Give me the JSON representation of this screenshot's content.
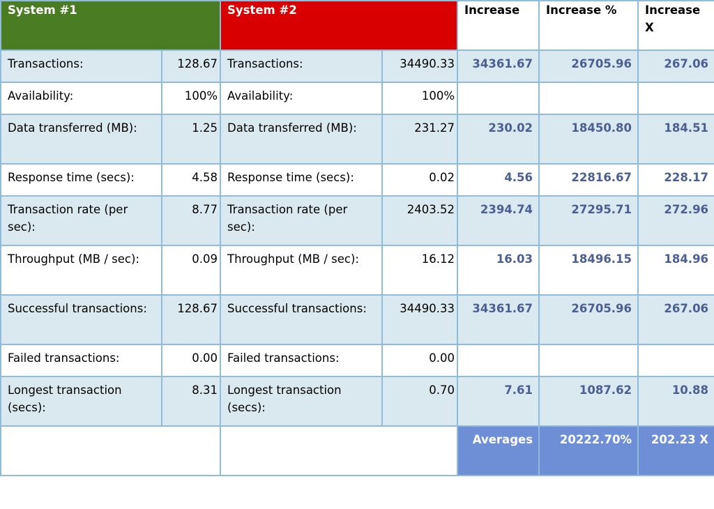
{
  "header": {
    "system1": "System #1",
    "system2": "System #2",
    "increase": "Increase",
    "increase_pct": "Increase %",
    "increase_x": "Increase X"
  },
  "rows": [
    {
      "label1": "Transactions:",
      "value1": "128.67",
      "label2": "Transactions:",
      "value2": "34490.33",
      "increase": "34361.67",
      "increase_pct": "26705.96",
      "increase_x": "267.06"
    },
    {
      "label1": "Availability:",
      "value1": "100%",
      "label2": "Availability:",
      "value2": "100%",
      "increase": "",
      "increase_pct": "",
      "increase_x": ""
    },
    {
      "label1": "Data transferred (MB):",
      "value1": "1.25",
      "label2": "Data transferred (MB):",
      "value2": "231.27",
      "increase": "230.02",
      "increase_pct": "18450.80",
      "increase_x": "184.51"
    },
    {
      "label1": "Response time (secs):",
      "value1": "4.58",
      "label2": "Response time (secs):",
      "value2": "0.02",
      "increase": "4.56",
      "increase_pct": "22816.67",
      "increase_x": "228.17"
    },
    {
      "label1": "Transaction rate (per sec):",
      "value1": "8.77",
      "label2": "Transaction rate (per sec):",
      "value2": "2403.52",
      "increase": "2394.74",
      "increase_pct": "27295.71",
      "increase_x": "272.96"
    },
    {
      "label1": "Throughput (MB / sec):",
      "value1": "0.09",
      "label2": "Throughput (MB / sec):",
      "value2": "16.12",
      "increase": "16.03",
      "increase_pct": "18496.15",
      "increase_x": "184.96"
    },
    {
      "label1": "Successful transactions:",
      "value1": "128.67",
      "label2": "Successful transactions:",
      "value2": "34490.33",
      "increase": "34361.67",
      "increase_pct": "26705.96",
      "increase_x": "267.06"
    },
    {
      "label1": "Failed transactions:",
      "value1": "0.00",
      "label2": "Failed transactions:",
      "value2": "0.00",
      "increase": "",
      "increase_pct": "",
      "increase_x": ""
    },
    {
      "label1": "Longest transaction (secs):",
      "value1": "8.31",
      "label2": "Longest transaction (secs):",
      "value2": "0.70",
      "increase": "7.61",
      "increase_pct": "1087.62",
      "increase_x": "10.88"
    }
  ],
  "footer": {
    "averages_label": "Averages",
    "avg_pct": "20222.70%",
    "avg_x": "202.23 X"
  },
  "colors": {
    "system1": "#4a7d23",
    "system2": "#d80000",
    "increase_text": "#4b5f94",
    "averages_bg": "#6e8fd6",
    "row_bg": "#dae9f0",
    "border": "#8fbcd8"
  }
}
